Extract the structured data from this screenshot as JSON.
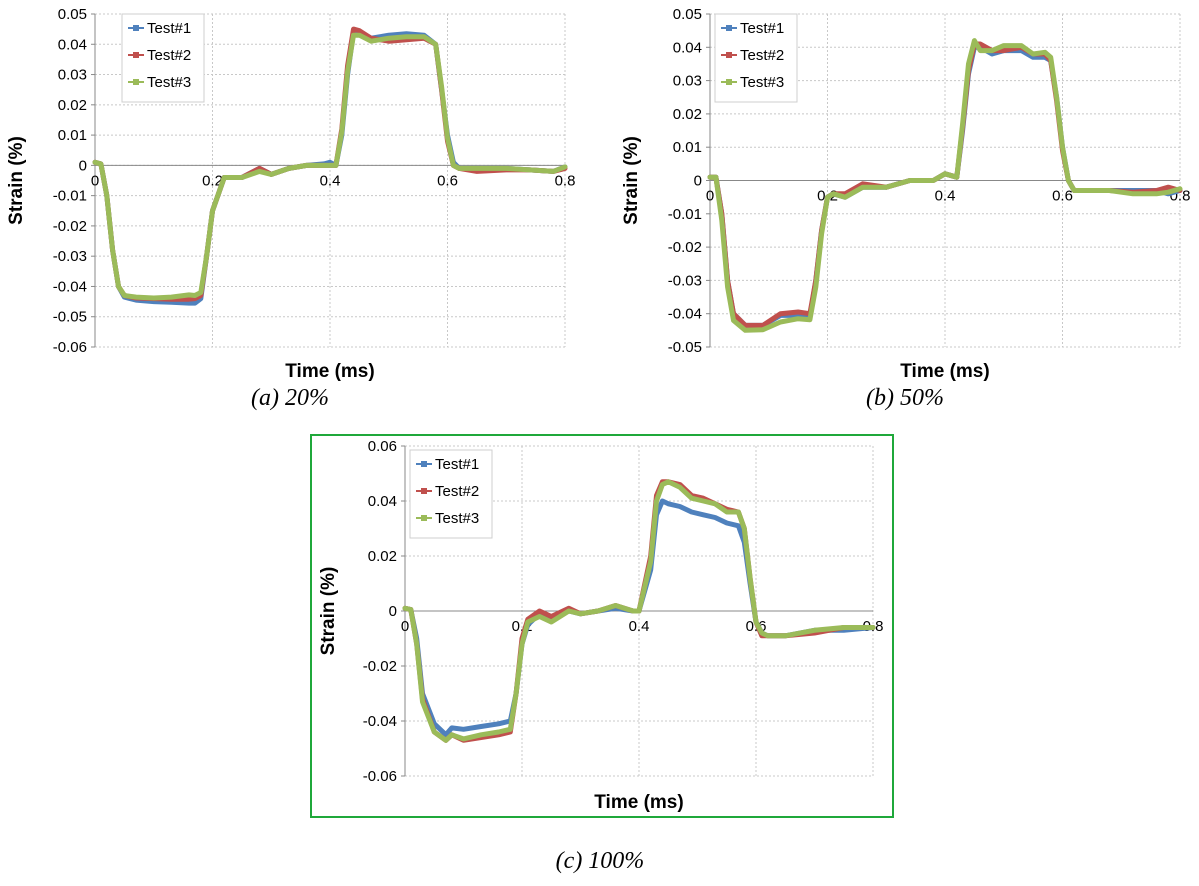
{
  "chart_data": [
    {
      "id": "a",
      "type": "line",
      "xlabel": "Time (ms)",
      "ylabel": "Strain (%)",
      "xlim": [
        0,
        0.8
      ],
      "ylim": [
        -0.06,
        0.05
      ],
      "xticks": [
        0,
        0.2,
        0.4,
        0.6,
        0.8
      ],
      "yticks": [
        -0.06,
        -0.05,
        -0.04,
        -0.03,
        -0.02,
        -0.01,
        0,
        0.01,
        0.02,
        0.03,
        0.04,
        0.05
      ],
      "grid": true,
      "legend_position": "top-left",
      "series": [
        {
          "name": "Test#1",
          "color": "#4f81bd",
          "x": [
            0,
            0.01,
            0.02,
            0.03,
            0.04,
            0.05,
            0.07,
            0.1,
            0.13,
            0.16,
            0.17,
            0.18,
            0.19,
            0.2,
            0.22,
            0.25,
            0.28,
            0.3,
            0.33,
            0.36,
            0.39,
            0.4,
            0.41,
            0.42,
            0.43,
            0.44,
            0.45,
            0.47,
            0.5,
            0.53,
            0.56,
            0.58,
            0.59,
            0.6,
            0.61,
            0.62,
            0.65,
            0.7,
            0.74,
            0.78,
            0.8
          ],
          "y": [
            0.001,
            0.0005,
            -0.01,
            -0.028,
            -0.04,
            -0.0435,
            -0.0445,
            -0.045,
            -0.0452,
            -0.0455,
            -0.0455,
            -0.044,
            -0.03,
            -0.015,
            -0.004,
            -0.004,
            -0.001,
            -0.003,
            -0.001,
            0,
            0.0005,
            0.001,
            0,
            0.01,
            0.03,
            0.044,
            0.044,
            0.042,
            0.043,
            0.0435,
            0.043,
            0.04,
            0.025,
            0.01,
            0.001,
            -0.001,
            -0.001,
            -0.001,
            -0.0015,
            -0.002,
            -0.0005
          ]
        },
        {
          "name": "Test#2",
          "color": "#c0504d",
          "x": [
            0,
            0.01,
            0.02,
            0.03,
            0.04,
            0.05,
            0.07,
            0.1,
            0.13,
            0.16,
            0.17,
            0.18,
            0.19,
            0.2,
            0.22,
            0.25,
            0.28,
            0.3,
            0.33,
            0.36,
            0.39,
            0.4,
            0.41,
            0.42,
            0.43,
            0.44,
            0.45,
            0.47,
            0.5,
            0.53,
            0.56,
            0.58,
            0.59,
            0.6,
            0.61,
            0.62,
            0.65,
            0.7,
            0.74,
            0.78,
            0.8
          ],
          "y": [
            0.001,
            0.0005,
            -0.01,
            -0.028,
            -0.04,
            -0.043,
            -0.0438,
            -0.044,
            -0.0442,
            -0.0442,
            -0.044,
            -0.043,
            -0.03,
            -0.015,
            -0.004,
            -0.004,
            -0.001,
            -0.003,
            -0.001,
            0,
            0,
            0,
            0,
            0.012,
            0.033,
            0.045,
            0.0445,
            0.042,
            0.041,
            0.0415,
            0.042,
            0.04,
            0.025,
            0.008,
            0,
            -0.001,
            -0.002,
            -0.0015,
            -0.0015,
            -0.002,
            -0.001
          ]
        },
        {
          "name": "Test#3",
          "color": "#9bbb59",
          "x": [
            0,
            0.01,
            0.02,
            0.03,
            0.04,
            0.05,
            0.07,
            0.1,
            0.13,
            0.16,
            0.17,
            0.18,
            0.19,
            0.2,
            0.22,
            0.25,
            0.28,
            0.3,
            0.33,
            0.36,
            0.39,
            0.4,
            0.41,
            0.42,
            0.43,
            0.44,
            0.45,
            0.47,
            0.5,
            0.53,
            0.56,
            0.58,
            0.59,
            0.6,
            0.61,
            0.62,
            0.65,
            0.7,
            0.74,
            0.78,
            0.8
          ],
          "y": [
            0.001,
            0.0005,
            -0.01,
            -0.028,
            -0.04,
            -0.043,
            -0.0435,
            -0.0438,
            -0.0435,
            -0.0428,
            -0.043,
            -0.042,
            -0.03,
            -0.015,
            -0.004,
            -0.004,
            -0.002,
            -0.003,
            -0.001,
            0,
            0,
            0,
            0,
            0.011,
            0.031,
            0.043,
            0.043,
            0.041,
            0.042,
            0.0425,
            0.0425,
            0.04,
            0.026,
            0.009,
            0,
            -0.001,
            -0.001,
            -0.001,
            -0.0015,
            -0.002,
            -0.0005
          ]
        }
      ]
    },
    {
      "id": "b",
      "type": "line",
      "xlabel": "Time (ms)",
      "ylabel": "Strain (%)",
      "xlim": [
        0,
        0.8
      ],
      "ylim": [
        -0.05,
        0.05
      ],
      "xticks": [
        0,
        0.2,
        0.4,
        0.6,
        0.8
      ],
      "yticks": [
        -0.05,
        -0.04,
        -0.03,
        -0.02,
        -0.01,
        0,
        0.01,
        0.02,
        0.03,
        0.04,
        0.05
      ],
      "grid": true,
      "legend_position": "top-left",
      "series": [
        {
          "name": "Test#1",
          "color": "#4f81bd",
          "x": [
            0,
            0.01,
            0.02,
            0.03,
            0.04,
            0.06,
            0.09,
            0.12,
            0.15,
            0.17,
            0.18,
            0.19,
            0.2,
            0.21,
            0.23,
            0.26,
            0.3,
            0.34,
            0.38,
            0.4,
            0.42,
            0.43,
            0.44,
            0.45,
            0.46,
            0.48,
            0.5,
            0.53,
            0.55,
            0.57,
            0.58,
            0.59,
            0.6,
            0.61,
            0.62,
            0.64,
            0.68,
            0.72,
            0.76,
            0.78,
            0.8
          ],
          "y": [
            0.001,
            0.001,
            -0.01,
            -0.03,
            -0.04,
            -0.0435,
            -0.0435,
            -0.0405,
            -0.0405,
            -0.041,
            -0.03,
            -0.015,
            -0.005,
            -0.004,
            -0.005,
            -0.002,
            -0.002,
            0,
            0,
            0.002,
            0.001,
            0.015,
            0.032,
            0.04,
            0.04,
            0.038,
            0.039,
            0.039,
            0.037,
            0.037,
            0.036,
            0.025,
            0.01,
            0,
            -0.003,
            -0.003,
            -0.003,
            -0.003,
            -0.003,
            -0.004,
            -0.003
          ]
        },
        {
          "name": "Test#2",
          "color": "#c0504d",
          "x": [
            0,
            0.01,
            0.02,
            0.03,
            0.04,
            0.06,
            0.09,
            0.12,
            0.15,
            0.17,
            0.18,
            0.19,
            0.2,
            0.21,
            0.23,
            0.26,
            0.3,
            0.34,
            0.38,
            0.4,
            0.42,
            0.43,
            0.44,
            0.45,
            0.46,
            0.48,
            0.5,
            0.53,
            0.55,
            0.57,
            0.58,
            0.59,
            0.6,
            0.61,
            0.62,
            0.64,
            0.68,
            0.72,
            0.76,
            0.78,
            0.8
          ],
          "y": [
            0.001,
            0.001,
            -0.01,
            -0.03,
            -0.04,
            -0.0435,
            -0.0435,
            -0.04,
            -0.0395,
            -0.04,
            -0.03,
            -0.015,
            -0.005,
            -0.004,
            -0.004,
            -0.001,
            -0.002,
            0,
            0,
            0.002,
            0.001,
            0.016,
            0.033,
            0.041,
            0.041,
            0.039,
            0.039,
            0.04,
            0.038,
            0.038,
            0.036,
            0.024,
            0.009,
            0,
            -0.003,
            -0.003,
            -0.003,
            -0.0035,
            -0.003,
            -0.002,
            -0.003
          ]
        },
        {
          "name": "Test#3",
          "color": "#9bbb59",
          "x": [
            0,
            0.01,
            0.02,
            0.03,
            0.04,
            0.06,
            0.09,
            0.12,
            0.15,
            0.17,
            0.18,
            0.19,
            0.2,
            0.21,
            0.23,
            0.26,
            0.3,
            0.34,
            0.38,
            0.4,
            0.42,
            0.43,
            0.44,
            0.45,
            0.46,
            0.48,
            0.5,
            0.53,
            0.55,
            0.57,
            0.58,
            0.59,
            0.6,
            0.61,
            0.62,
            0.64,
            0.68,
            0.72,
            0.76,
            0.78,
            0.8
          ],
          "y": [
            0.001,
            0.001,
            -0.012,
            -0.032,
            -0.042,
            -0.045,
            -0.0448,
            -0.0425,
            -0.0415,
            -0.0418,
            -0.032,
            -0.016,
            -0.005,
            -0.004,
            -0.005,
            -0.002,
            -0.002,
            0,
            0,
            0.002,
            0.001,
            0.017,
            0.035,
            0.042,
            0.039,
            0.039,
            0.0405,
            0.0405,
            0.038,
            0.0385,
            0.037,
            0.025,
            0.01,
            0,
            -0.003,
            -0.003,
            -0.003,
            -0.004,
            -0.004,
            -0.0035,
            -0.0025
          ]
        }
      ]
    },
    {
      "id": "c",
      "type": "line",
      "xlabel": "Time (ms)",
      "ylabel": "Strain (%)",
      "xlim": [
        0,
        0.8
      ],
      "ylim": [
        -0.06,
        0.06
      ],
      "xticks": [
        0,
        0.2,
        0.4,
        0.6,
        0.8
      ],
      "yticks": [
        -0.06,
        -0.04,
        -0.02,
        0,
        0.02,
        0.04,
        0.06
      ],
      "grid": true,
      "legend_position": "top-left",
      "series": [
        {
          "name": "Test#1",
          "color": "#4f81bd",
          "x": [
            0,
            0.01,
            0.02,
            0.03,
            0.05,
            0.07,
            0.08,
            0.1,
            0.13,
            0.16,
            0.18,
            0.19,
            0.2,
            0.21,
            0.23,
            0.25,
            0.28,
            0.3,
            0.33,
            0.36,
            0.39,
            0.4,
            0.42,
            0.43,
            0.44,
            0.45,
            0.47,
            0.49,
            0.51,
            0.53,
            0.55,
            0.57,
            0.58,
            0.59,
            0.6,
            0.61,
            0.62,
            0.65,
            0.7,
            0.75,
            0.8
          ],
          "y": [
            0.001,
            0.0005,
            -0.01,
            -0.03,
            -0.041,
            -0.045,
            -0.0425,
            -0.043,
            -0.042,
            -0.041,
            -0.04,
            -0.03,
            -0.012,
            -0.005,
            -0.001,
            -0.003,
            0,
            -0.001,
            0,
            0.001,
            0,
            0,
            0.015,
            0.035,
            0.04,
            0.039,
            0.038,
            0.036,
            0.035,
            0.034,
            0.032,
            0.031,
            0.025,
            0.01,
            -0.004,
            -0.008,
            -0.009,
            -0.009,
            -0.007,
            -0.007,
            -0.006
          ]
        },
        {
          "name": "Test#2",
          "color": "#c0504d",
          "x": [
            0,
            0.01,
            0.02,
            0.03,
            0.05,
            0.07,
            0.08,
            0.1,
            0.13,
            0.16,
            0.18,
            0.19,
            0.2,
            0.21,
            0.23,
            0.25,
            0.28,
            0.3,
            0.33,
            0.36,
            0.39,
            0.4,
            0.42,
            0.43,
            0.44,
            0.45,
            0.47,
            0.49,
            0.51,
            0.53,
            0.55,
            0.57,
            0.58,
            0.59,
            0.6,
            0.61,
            0.62,
            0.65,
            0.7,
            0.75,
            0.8
          ],
          "y": [
            0.001,
            0.0005,
            -0.012,
            -0.032,
            -0.044,
            -0.047,
            -0.045,
            -0.047,
            -0.046,
            -0.045,
            -0.044,
            -0.03,
            -0.01,
            -0.003,
            0,
            -0.002,
            0.001,
            -0.001,
            0,
            0.002,
            0,
            0,
            0.02,
            0.042,
            0.047,
            0.047,
            0.046,
            0.042,
            0.041,
            0.039,
            0.037,
            0.036,
            0.03,
            0.012,
            -0.004,
            -0.009,
            -0.009,
            -0.009,
            -0.008,
            -0.006,
            -0.006
          ]
        },
        {
          "name": "Test#3",
          "color": "#9bbb59",
          "x": [
            0,
            0.01,
            0.02,
            0.03,
            0.05,
            0.07,
            0.08,
            0.1,
            0.13,
            0.16,
            0.18,
            0.19,
            0.2,
            0.21,
            0.23,
            0.25,
            0.28,
            0.3,
            0.33,
            0.36,
            0.39,
            0.4,
            0.42,
            0.43,
            0.44,
            0.45,
            0.47,
            0.49,
            0.51,
            0.53,
            0.55,
            0.57,
            0.58,
            0.59,
            0.6,
            0.61,
            0.62,
            0.65,
            0.7,
            0.75,
            0.8
          ],
          "y": [
            0.001,
            0.0005,
            -0.012,
            -0.033,
            -0.044,
            -0.047,
            -0.045,
            -0.0465,
            -0.045,
            -0.044,
            -0.043,
            -0.03,
            -0.012,
            -0.004,
            -0.002,
            -0.004,
            0,
            -0.001,
            0,
            0.002,
            0,
            0,
            0.018,
            0.04,
            0.046,
            0.047,
            0.045,
            0.041,
            0.04,
            0.039,
            0.036,
            0.036,
            0.03,
            0.012,
            -0.004,
            -0.008,
            -0.009,
            -0.009,
            -0.007,
            -0.006,
            -0.006
          ]
        }
      ]
    }
  ],
  "captions": {
    "a": "(a) 20%",
    "b": "(b) 50%",
    "c": "(c) 100%"
  },
  "frame_color": "#1fa83a"
}
